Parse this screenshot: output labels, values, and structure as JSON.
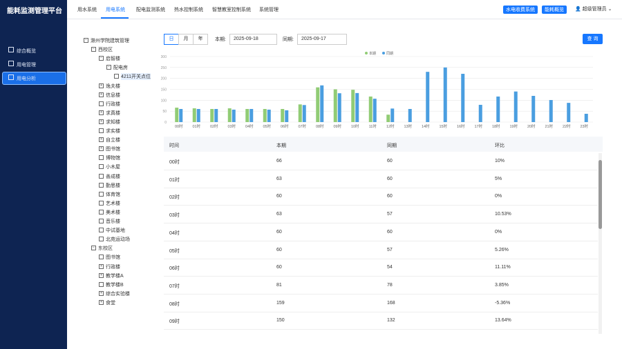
{
  "header": {
    "title": "能耗监测管理平台",
    "nav": [
      "用水系统",
      "用电系统",
      "配电监测系统",
      "热水控制系统",
      "智慧教室控制系统",
      "系统管理"
    ],
    "buttons": [
      "水电收费系统",
      "能耗概览"
    ],
    "user": "超级管理员"
  },
  "sidebar": [
    "综合概览",
    "用电管理",
    "用电分析"
  ],
  "filters": {
    "modes": [
      "日",
      "月",
      "年"
    ],
    "current_label": "本期:",
    "current_date": "2025-09-18",
    "previous_label": "同期:",
    "previous_date": "2025-09-17",
    "query": "查 询"
  },
  "tree": {
    "label": "滁州学院建筑管理",
    "children": [
      {
        "label": "西校区",
        "children": [
          {
            "label": "启智楼",
            "children": [
              {
                "label": "配电房",
                "children": [
                  {
                    "label": "4211开关点位"
                  }
                ]
              }
            ]
          },
          {
            "label": "逸夫楼"
          },
          {
            "label": "信息楼"
          },
          {
            "label": "行政楼"
          },
          {
            "label": "求真楼"
          },
          {
            "label": "求知楼"
          },
          {
            "label": "求实楼"
          },
          {
            "label": "自立楼"
          },
          {
            "label": "图书馆"
          },
          {
            "label": "博物馆"
          },
          {
            "label": "小木屋"
          },
          {
            "label": "善成楼"
          },
          {
            "label": "勤思楼"
          },
          {
            "label": "体育馆"
          },
          {
            "label": "艺术楼"
          },
          {
            "label": "美术楼"
          },
          {
            "label": "音乐楼"
          },
          {
            "label": "中试基地"
          },
          {
            "label": "北苑运动场"
          }
        ]
      },
      {
        "label": "东校区",
        "children": [
          {
            "label": "图书馆"
          },
          {
            "label": "行政楼"
          },
          {
            "label": "教学楼A"
          },
          {
            "label": "教学楼B"
          },
          {
            "label": "综合实验楼"
          },
          {
            "label": "食堂"
          }
        ]
      }
    ]
  },
  "chart_data": {
    "type": "bar",
    "categories": [
      "00时",
      "01时",
      "02时",
      "03时",
      "04时",
      "05时",
      "06时",
      "07时",
      "08时",
      "09时",
      "10时",
      "11时",
      "12时",
      "13时",
      "14时",
      "15时",
      "16时",
      "17时",
      "18时",
      "19时",
      "20时",
      "21时",
      "22时",
      "23时"
    ],
    "series": [
      {
        "name": "本期",
        "color": "#91cc75",
        "values": [
          66,
          63,
          60,
          63,
          60,
          60,
          60,
          81,
          159,
          150,
          148,
          117,
          34,
          null,
          null,
          null,
          null,
          null,
          null,
          null,
          null,
          null,
          null,
          null
        ]
      },
      {
        "name": "同期",
        "color": "#4a9ee0",
        "values": [
          60,
          60,
          60,
          57,
          60,
          57,
          54,
          78,
          168,
          132,
          133,
          107,
          62,
          60,
          230,
          250,
          221,
          79,
          117,
          140,
          120,
          101,
          88,
          38
        ]
      }
    ],
    "ylim": [
      0,
      300
    ],
    "yticks": [
      0,
      50,
      100,
      150,
      200,
      250,
      300
    ],
    "grid": true,
    "legend": "top"
  },
  "table": {
    "columns": [
      "时间",
      "本期",
      "同期",
      "环比"
    ],
    "rows": [
      [
        "00时",
        "66",
        "60",
        "10%"
      ],
      [
        "01时",
        "63",
        "60",
        "5%"
      ],
      [
        "02时",
        "60",
        "60",
        "0%"
      ],
      [
        "03时",
        "63",
        "57",
        "10.53%"
      ],
      [
        "04时",
        "60",
        "60",
        "0%"
      ],
      [
        "05时",
        "60",
        "57",
        "5.26%"
      ],
      [
        "06时",
        "60",
        "54",
        "11.11%"
      ],
      [
        "07时",
        "81",
        "78",
        "3.85%"
      ],
      [
        "08时",
        "159",
        "168",
        "-5.36%"
      ],
      [
        "09时",
        "150",
        "132",
        "13.64%"
      ]
    ]
  }
}
